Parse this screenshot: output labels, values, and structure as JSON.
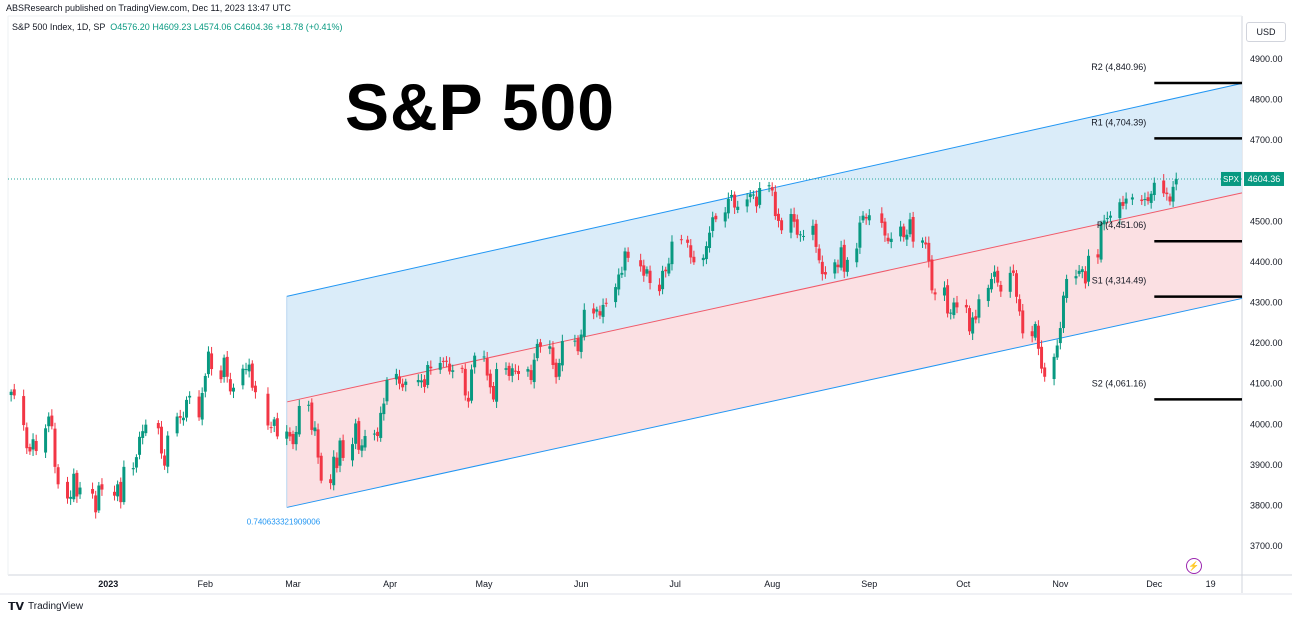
{
  "publisher_line": "ABSResearch published on TradingView.com, Dec 11, 2023 13:47 UTC",
  "legend": {
    "symbol": "S&P 500 Index, 1D, SP",
    "o": "O4576.20",
    "h": "H4609.23",
    "l": "L4574.06",
    "c": "C4604.36",
    "change": "+18.78 (+0.41%)"
  },
  "big_title": "S&P 500",
  "currency_button": "USD",
  "branding": "TradingView",
  "colors": {
    "up": "#089981",
    "down": "#f23645",
    "channel_upper_fill": "#d6eaf8",
    "channel_lower_fill": "#fbdde0",
    "channel_line": "#2196f3",
    "mid_line": "#f05a6a",
    "pivot_line": "#000000",
    "price_tag": "#089981",
    "price_dotted": "#26a69a"
  },
  "chart_data": {
    "type": "candlestick",
    "title": "S&P 500",
    "symbol": "SPX",
    "last_price": 4604.36,
    "last_price_label": "4604.36",
    "ylim": [
      3640,
      4950
    ],
    "y_ticks": [
      3700,
      3800,
      3900,
      4000,
      4100,
      4200,
      4300,
      4400,
      4500,
      4600,
      4700,
      4800,
      4900
    ],
    "y_tick_labels": [
      "3700.00",
      "3800.00",
      "3900.00",
      "4000.00",
      "4100.00",
      "4200.00",
      "4300.00",
      "4400.00",
      "4500.00",
      "4600.00",
      "4700.00",
      "4800.00",
      "4900.00"
    ],
    "x_range": [
      "2022-11-30",
      "2023-12-29"
    ],
    "x_ticks": [
      {
        "label": "2023",
        "date": "2023-01-01",
        "bold": true
      },
      {
        "label": "Feb",
        "date": "2023-02-01"
      },
      {
        "label": "Mar",
        "date": "2023-03-01"
      },
      {
        "label": "Apr",
        "date": "2023-04-01"
      },
      {
        "label": "May",
        "date": "2023-05-01"
      },
      {
        "label": "Jun",
        "date": "2023-06-01"
      },
      {
        "label": "Jul",
        "date": "2023-07-01"
      },
      {
        "label": "Aug",
        "date": "2023-08-01"
      },
      {
        "label": "Sep",
        "date": "2023-09-01"
      },
      {
        "label": "Oct",
        "date": "2023-10-01"
      },
      {
        "label": "Nov",
        "date": "2023-11-01"
      },
      {
        "label": "Dec",
        "date": "2023-12-01"
      },
      {
        "label": "19",
        "date": "2023-12-19"
      }
    ],
    "regression_channel": {
      "start_date": "2023-02-27",
      "end_date": "2023-12-29",
      "upper": [
        4315,
        4840
      ],
      "middle": [
        4055,
        4570
      ],
      "lower": [
        3795,
        4310
      ],
      "label": "0.740633321909006"
    },
    "pivot_levels": [
      {
        "name": "R2",
        "label": "R2 (4,840.96)",
        "value": 4840.96
      },
      {
        "name": "R1",
        "label": "R1 (4,704.39)",
        "value": 4704.39
      },
      {
        "name": "P",
        "label": "P (4,451.06)",
        "value": 4451.06
      },
      {
        "name": "S1",
        "label": "S1 (4,314.49)",
        "value": 4314.49
      },
      {
        "name": "S2",
        "label": "S2 (4,061.16)",
        "value": 4061.16
      }
    ],
    "pivot_start_date": "2023-12-01",
    "close_path": [
      [
        "2022-12-01",
        4080
      ],
      [
        "2022-12-02",
        4071
      ],
      [
        "2022-12-05",
        3998
      ],
      [
        "2022-12-06",
        3941
      ],
      [
        "2022-12-07",
        3933
      ],
      [
        "2022-12-08",
        3963
      ],
      [
        "2022-12-09",
        3934
      ],
      [
        "2022-12-12",
        3990
      ],
      [
        "2022-12-13",
        4019
      ],
      [
        "2022-12-14",
        3995
      ],
      [
        "2022-12-15",
        3895
      ],
      [
        "2022-12-16",
        3852
      ],
      [
        "2022-12-19",
        3817
      ],
      [
        "2022-12-20",
        3821
      ],
      [
        "2022-12-21",
        3878
      ],
      [
        "2022-12-22",
        3822
      ],
      [
        "2022-12-23",
        3844
      ],
      [
        "2022-12-27",
        3829
      ],
      [
        "2022-12-28",
        3783
      ],
      [
        "2022-12-29",
        3849
      ],
      [
        "2022-12-30",
        3839
      ],
      [
        "2023-01-03",
        3824
      ],
      [
        "2023-01-04",
        3852
      ],
      [
        "2023-01-05",
        3808
      ],
      [
        "2023-01-06",
        3895
      ],
      [
        "2023-01-09",
        3892
      ],
      [
        "2023-01-10",
        3919
      ],
      [
        "2023-01-11",
        3969
      ],
      [
        "2023-01-12",
        3983
      ],
      [
        "2023-01-13",
        3999
      ],
      [
        "2023-01-17",
        3990
      ],
      [
        "2023-01-18",
        3928
      ],
      [
        "2023-01-19",
        3898
      ],
      [
        "2023-01-20",
        3972
      ],
      [
        "2023-01-23",
        4019
      ],
      [
        "2023-01-24",
        4016
      ],
      [
        "2023-01-25",
        4016
      ],
      [
        "2023-01-26",
        4060
      ],
      [
        "2023-01-27",
        4070
      ],
      [
        "2023-01-30",
        4017
      ],
      [
        "2023-01-31",
        4077
      ],
      [
        "2023-02-01",
        4119
      ],
      [
        "2023-02-02",
        4179
      ],
      [
        "2023-02-03",
        4136
      ],
      [
        "2023-02-06",
        4111
      ],
      [
        "2023-02-07",
        4164
      ],
      [
        "2023-02-08",
        4117
      ],
      [
        "2023-02-09",
        4081
      ],
      [
        "2023-02-10",
        4090
      ],
      [
        "2023-02-13",
        4137
      ],
      [
        "2023-02-14",
        4136
      ],
      [
        "2023-02-15",
        4147
      ],
      [
        "2023-02-16",
        4090
      ],
      [
        "2023-02-17",
        4079
      ],
      [
        "2023-02-21",
        3997
      ],
      [
        "2023-02-22",
        3991
      ],
      [
        "2023-02-23",
        4012
      ],
      [
        "2023-02-24",
        3970
      ],
      [
        "2023-02-27",
        3982
      ],
      [
        "2023-02-28",
        3970
      ],
      [
        "2023-03-01",
        3951
      ],
      [
        "2023-03-02",
        3981
      ],
      [
        "2023-03-03",
        4045
      ],
      [
        "2023-03-06",
        4048
      ],
      [
        "2023-03-07",
        3986
      ],
      [
        "2023-03-08",
        3992
      ],
      [
        "2023-03-09",
        3918
      ],
      [
        "2023-03-10",
        3861
      ],
      [
        "2023-03-13",
        3855
      ],
      [
        "2023-03-14",
        3920
      ],
      [
        "2023-03-15",
        3892
      ],
      [
        "2023-03-16",
        3960
      ],
      [
        "2023-03-17",
        3917
      ],
      [
        "2023-03-20",
        3951
      ],
      [
        "2023-03-21",
        4002
      ],
      [
        "2023-03-22",
        3937
      ],
      [
        "2023-03-23",
        3948
      ],
      [
        "2023-03-24",
        3971
      ],
      [
        "2023-03-27",
        3977
      ],
      [
        "2023-03-28",
        3971
      ],
      [
        "2023-03-29",
        4028
      ],
      [
        "2023-03-30",
        4051
      ],
      [
        "2023-03-31",
        4109
      ],
      [
        "2023-04-03",
        4124
      ],
      [
        "2023-04-04",
        4100
      ],
      [
        "2023-04-05",
        4091
      ],
      [
        "2023-04-06",
        4105
      ],
      [
        "2023-04-10",
        4109
      ],
      [
        "2023-04-11",
        4108
      ],
      [
        "2023-04-12",
        4092
      ],
      [
        "2023-04-13",
        4146
      ],
      [
        "2023-04-14",
        4138
      ],
      [
        "2023-04-17",
        4151
      ],
      [
        "2023-04-18",
        4154
      ],
      [
        "2023-04-19",
        4155
      ],
      [
        "2023-04-20",
        4130
      ],
      [
        "2023-04-21",
        4133
      ],
      [
        "2023-04-24",
        4137
      ],
      [
        "2023-04-25",
        4071
      ],
      [
        "2023-04-26",
        4056
      ],
      [
        "2023-04-27",
        4135
      ],
      [
        "2023-04-28",
        4169
      ],
      [
        "2023-05-01",
        4167
      ],
      [
        "2023-05-02",
        4120
      ],
      [
        "2023-05-03",
        4091
      ],
      [
        "2023-05-04",
        4061
      ],
      [
        "2023-05-05",
        4136
      ],
      [
        "2023-05-08",
        4138
      ],
      [
        "2023-05-09",
        4119
      ],
      [
        "2023-05-10",
        4138
      ],
      [
        "2023-05-11",
        4130
      ],
      [
        "2023-05-12",
        4124
      ],
      [
        "2023-05-15",
        4136
      ],
      [
        "2023-05-16",
        4109
      ],
      [
        "2023-05-17",
        4159
      ],
      [
        "2023-05-18",
        4198
      ],
      [
        "2023-05-19",
        4191
      ],
      [
        "2023-05-22",
        4192
      ],
      [
        "2023-05-23",
        4146
      ],
      [
        "2023-05-24",
        4116
      ],
      [
        "2023-05-25",
        4151
      ],
      [
        "2023-05-26",
        4205
      ],
      [
        "2023-05-30",
        4206
      ],
      [
        "2023-05-31",
        4180
      ],
      [
        "2023-06-01",
        4221
      ],
      [
        "2023-06-02",
        4282
      ],
      [
        "2023-06-05",
        4273
      ],
      [
        "2023-06-06",
        4283
      ],
      [
        "2023-06-07",
        4268
      ],
      [
        "2023-06-08",
        4294
      ],
      [
        "2023-06-09",
        4299
      ],
      [
        "2023-06-12",
        4338
      ],
      [
        "2023-06-13",
        4369
      ],
      [
        "2023-06-14",
        4373
      ],
      [
        "2023-06-15",
        4426
      ],
      [
        "2023-06-16",
        4410
      ],
      [
        "2023-06-20",
        4389
      ],
      [
        "2023-06-21",
        4366
      ],
      [
        "2023-06-22",
        4382
      ],
      [
        "2023-06-23",
        4348
      ],
      [
        "2023-06-26",
        4328
      ],
      [
        "2023-06-27",
        4378
      ],
      [
        "2023-06-28",
        4377
      ],
      [
        "2023-06-29",
        4396
      ],
      [
        "2023-06-30",
        4450
      ],
      [
        "2023-07-03",
        4455
      ],
      [
        "2023-07-05",
        4447
      ],
      [
        "2023-07-06",
        4411
      ],
      [
        "2023-07-07",
        4399
      ],
      [
        "2023-07-10",
        4410
      ],
      [
        "2023-07-11",
        4439
      ],
      [
        "2023-07-12",
        4472
      ],
      [
        "2023-07-13",
        4510
      ],
      [
        "2023-07-14",
        4505
      ],
      [
        "2023-07-17",
        4522
      ],
      [
        "2023-07-18",
        4555
      ],
      [
        "2023-07-19",
        4565
      ],
      [
        "2023-07-20",
        4534
      ],
      [
        "2023-07-21",
        4536
      ],
      [
        "2023-07-24",
        4554
      ],
      [
        "2023-07-25",
        4567
      ],
      [
        "2023-07-26",
        4566
      ],
      [
        "2023-07-27",
        4537
      ],
      [
        "2023-07-28",
        4582
      ],
      [
        "2023-07-31",
        4589
      ],
      [
        "2023-08-01",
        4576
      ],
      [
        "2023-08-02",
        4513
      ],
      [
        "2023-08-03",
        4501
      ],
      [
        "2023-08-04",
        4478
      ],
      [
        "2023-08-07",
        4518
      ],
      [
        "2023-08-08",
        4499
      ],
      [
        "2023-08-09",
        4467
      ],
      [
        "2023-08-10",
        4468
      ],
      [
        "2023-08-11",
        4464
      ],
      [
        "2023-08-14",
        4489
      ],
      [
        "2023-08-15",
        4437
      ],
      [
        "2023-08-16",
        4404
      ],
      [
        "2023-08-17",
        4370
      ],
      [
        "2023-08-18",
        4369
      ],
      [
        "2023-08-21",
        4399
      ],
      [
        "2023-08-22",
        4387
      ],
      [
        "2023-08-23",
        4436
      ],
      [
        "2023-08-24",
        4376
      ],
      [
        "2023-08-25",
        4405
      ],
      [
        "2023-08-28",
        4433
      ],
      [
        "2023-08-29",
        4497
      ],
      [
        "2023-08-30",
        4514
      ],
      [
        "2023-08-31",
        4507
      ],
      [
        "2023-09-01",
        4515
      ],
      [
        "2023-09-05",
        4496
      ],
      [
        "2023-09-06",
        4465
      ],
      [
        "2023-09-07",
        4451
      ],
      [
        "2023-09-08",
        4457
      ],
      [
        "2023-09-11",
        4487
      ],
      [
        "2023-09-12",
        4461
      ],
      [
        "2023-09-13",
        4467
      ],
      [
        "2023-09-14",
        4505
      ],
      [
        "2023-09-15",
        4450
      ],
      [
        "2023-09-18",
        4453
      ],
      [
        "2023-09-19",
        4443
      ],
      [
        "2023-09-20",
        4402
      ],
      [
        "2023-09-21",
        4330
      ],
      [
        "2023-09-22",
        4320
      ],
      [
        "2023-09-25",
        4337
      ],
      [
        "2023-09-26",
        4273
      ],
      [
        "2023-09-27",
        4275
      ],
      [
        "2023-09-28",
        4300
      ],
      [
        "2023-09-29",
        4288
      ],
      [
        "2023-10-02",
        4288
      ],
      [
        "2023-10-03",
        4229
      ],
      [
        "2023-10-04",
        4263
      ],
      [
        "2023-10-05",
        4258
      ],
      [
        "2023-10-06",
        4308
      ],
      [
        "2023-10-09",
        4336
      ],
      [
        "2023-10-10",
        4358
      ],
      [
        "2023-10-11",
        4376
      ],
      [
        "2023-10-12",
        4349
      ],
      [
        "2023-10-13",
        4327
      ],
      [
        "2023-10-16",
        4373
      ],
      [
        "2023-10-17",
        4373
      ],
      [
        "2023-10-18",
        4314
      ],
      [
        "2023-10-19",
        4278
      ],
      [
        "2023-10-20",
        4224
      ],
      [
        "2023-10-23",
        4217
      ],
      [
        "2023-10-24",
        4247
      ],
      [
        "2023-10-25",
        4186
      ],
      [
        "2023-10-26",
        4137
      ],
      [
        "2023-10-27",
        4117
      ],
      [
        "2023-10-30",
        4166
      ],
      [
        "2023-10-31",
        4194
      ],
      [
        "2023-11-01",
        4237
      ],
      [
        "2023-11-02",
        4317
      ],
      [
        "2023-11-03",
        4358
      ],
      [
        "2023-11-06",
        4365
      ],
      [
        "2023-11-07",
        4378
      ],
      [
        "2023-11-08",
        4382
      ],
      [
        "2023-11-09",
        4347
      ],
      [
        "2023-11-10",
        4415
      ],
      [
        "2023-11-13",
        4411
      ],
      [
        "2023-11-14",
        4495
      ],
      [
        "2023-11-15",
        4502
      ],
      [
        "2023-11-16",
        4508
      ],
      [
        "2023-11-17",
        4514
      ],
      [
        "2023-11-20",
        4547
      ],
      [
        "2023-11-21",
        4538
      ],
      [
        "2023-11-22",
        4556
      ],
      [
        "2023-11-24",
        4559
      ],
      [
        "2023-11-27",
        4550
      ],
      [
        "2023-11-28",
        4555
      ],
      [
        "2023-11-29",
        4550
      ],
      [
        "2023-11-30",
        4568
      ],
      [
        "2023-12-01",
        4595
      ],
      [
        "2023-12-04",
        4569
      ],
      [
        "2023-12-05",
        4567
      ],
      [
        "2023-12-06",
        4549
      ],
      [
        "2023-12-07",
        4585
      ],
      [
        "2023-12-08",
        4604.36
      ]
    ]
  }
}
